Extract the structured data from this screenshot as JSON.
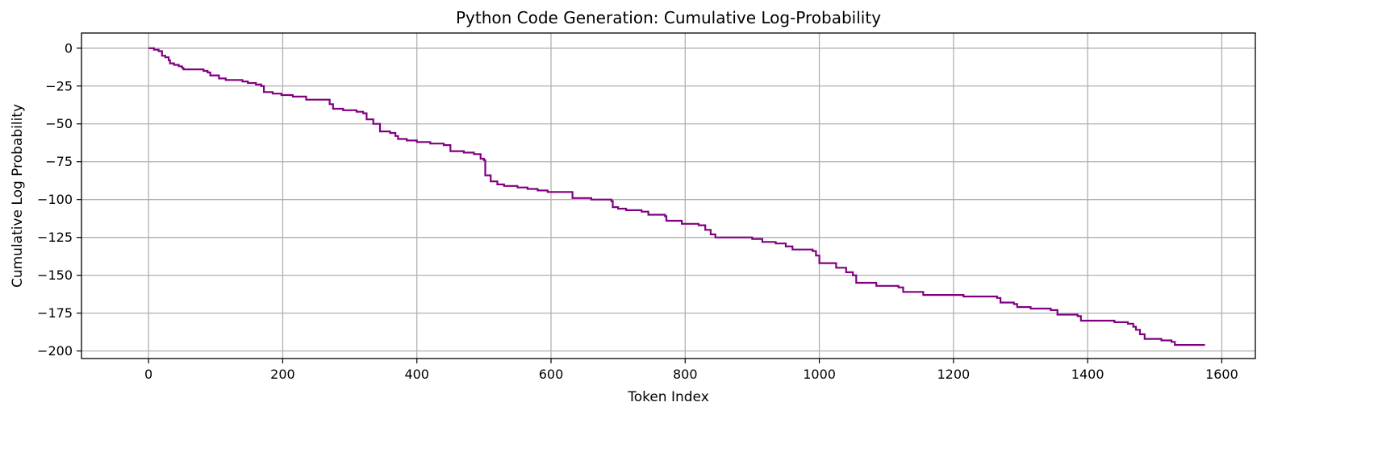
{
  "chart_data": {
    "type": "line",
    "title": "Python Code Generation: Cumulative Log-Probability",
    "xlabel": "Token Index",
    "ylabel": "Cumulative Log Probability",
    "xlim": [
      -100,
      1650
    ],
    "ylim": [
      -205,
      10
    ],
    "xticks": [
      0,
      200,
      400,
      600,
      800,
      1000,
      1200,
      1400,
      1600
    ],
    "yticks": [
      0,
      -25,
      -50,
      -75,
      -100,
      -125,
      -150,
      -175,
      -200
    ],
    "grid": true,
    "colors": {
      "line": "#800080",
      "grid": "#b0b0b0",
      "axes": "#000000"
    },
    "series": [
      {
        "points": [
          [
            0,
            0
          ],
          [
            8,
            -1
          ],
          [
            15,
            -2
          ],
          [
            20,
            -5
          ],
          [
            25,
            -6
          ],
          [
            30,
            -8
          ],
          [
            32,
            -10
          ],
          [
            38,
            -11
          ],
          [
            45,
            -12
          ],
          [
            50,
            -13
          ],
          [
            52,
            -14
          ],
          [
            70,
            -14
          ],
          [
            82,
            -15
          ],
          [
            88,
            -16
          ],
          [
            92,
            -18
          ],
          [
            105,
            -20
          ],
          [
            115,
            -21
          ],
          [
            135,
            -21
          ],
          [
            140,
            -22
          ],
          [
            148,
            -23
          ],
          [
            160,
            -24
          ],
          [
            168,
            -25
          ],
          [
            172,
            -29
          ],
          [
            185,
            -30
          ],
          [
            198,
            -31
          ],
          [
            215,
            -32
          ],
          [
            235,
            -34
          ],
          [
            265,
            -34
          ],
          [
            270,
            -37
          ],
          [
            275,
            -40
          ],
          [
            290,
            -41
          ],
          [
            310,
            -42
          ],
          [
            320,
            -43
          ],
          [
            325,
            -47
          ],
          [
            335,
            -50
          ],
          [
            345,
            -55
          ],
          [
            360,
            -56
          ],
          [
            368,
            -58
          ],
          [
            372,
            -60
          ],
          [
            385,
            -61
          ],
          [
            400,
            -62
          ],
          [
            420,
            -63
          ],
          [
            440,
            -64
          ],
          [
            450,
            -68
          ],
          [
            470,
            -69
          ],
          [
            485,
            -70
          ],
          [
            495,
            -73
          ],
          [
            500,
            -74
          ],
          [
            502,
            -84
          ],
          [
            510,
            -88
          ],
          [
            520,
            -90
          ],
          [
            530,
            -91
          ],
          [
            550,
            -92
          ],
          [
            565,
            -93
          ],
          [
            580,
            -94
          ],
          [
            595,
            -95
          ],
          [
            625,
            -95
          ],
          [
            632,
            -99
          ],
          [
            660,
            -100
          ],
          [
            690,
            -101
          ],
          [
            692,
            -105
          ],
          [
            700,
            -106
          ],
          [
            712,
            -107
          ],
          [
            735,
            -108
          ],
          [
            745,
            -110
          ],
          [
            770,
            -111
          ],
          [
            772,
            -114
          ],
          [
            795,
            -116
          ],
          [
            820,
            -117
          ],
          [
            830,
            -120
          ],
          [
            838,
            -123
          ],
          [
            845,
            -125
          ],
          [
            900,
            -126
          ],
          [
            915,
            -128
          ],
          [
            935,
            -129
          ],
          [
            950,
            -131
          ],
          [
            960,
            -133
          ],
          [
            990,
            -134
          ],
          [
            995,
            -137
          ],
          [
            1000,
            -142
          ],
          [
            1025,
            -145
          ],
          [
            1040,
            -148
          ],
          [
            1050,
            -150
          ],
          [
            1055,
            -155
          ],
          [
            1085,
            -157
          ],
          [
            1118,
            -158
          ],
          [
            1125,
            -161
          ],
          [
            1155,
            -163
          ],
          [
            1215,
            -164
          ],
          [
            1265,
            -165
          ],
          [
            1270,
            -168
          ],
          [
            1290,
            -169
          ],
          [
            1295,
            -171
          ],
          [
            1315,
            -172
          ],
          [
            1345,
            -173
          ],
          [
            1355,
            -176
          ],
          [
            1385,
            -177
          ],
          [
            1390,
            -180
          ],
          [
            1440,
            -181
          ],
          [
            1460,
            -182
          ],
          [
            1468,
            -184
          ],
          [
            1472,
            -186
          ],
          [
            1478,
            -189
          ],
          [
            1485,
            -192
          ],
          [
            1510,
            -193
          ],
          [
            1525,
            -194
          ],
          [
            1530,
            -196
          ],
          [
            1575,
            -196
          ]
        ]
      }
    ]
  }
}
